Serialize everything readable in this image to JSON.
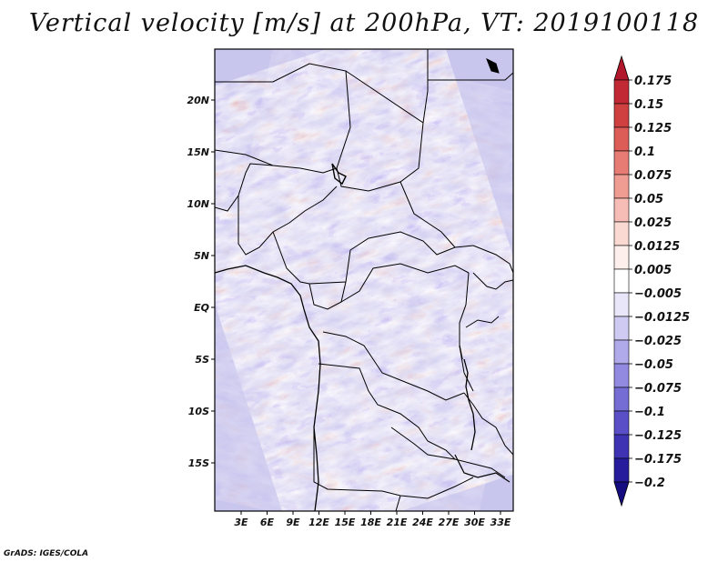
{
  "title": "Vertical velocity [m/s] at 200hPa, VT: 2019100118",
  "credit": "GrADS: IGES/COLA",
  "map": {
    "lon_labels": [
      "3E",
      "6E",
      "9E",
      "12E",
      "15E",
      "18E",
      "21E",
      "24E",
      "27E",
      "30E",
      "33E"
    ],
    "lat_labels": [
      "20N",
      "15N",
      "10N",
      "5N",
      "EQ",
      "5S",
      "10S",
      "15S"
    ]
  },
  "colorbar": {
    "levels": [
      "0.175",
      "0.15",
      "0.125",
      "0.1",
      "0.075",
      "0.05",
      "0.025",
      "0.0125",
      "0.005",
      "-0.005",
      "-0.0125",
      "-0.025",
      "-0.05",
      "-0.075",
      "-0.1",
      "-0.125",
      "-0.175",
      "-0.2"
    ],
    "colors": [
      "#b2182b",
      "#c12a35",
      "#cf4040",
      "#dc5c58",
      "#e67c74",
      "#ef9c93",
      "#f5bdb5",
      "#fad9d3",
      "#fdf0ec",
      "#ffffff",
      "#e8e6f8",
      "#cfcaf2",
      "#b0a9ea",
      "#928ae0",
      "#756cd4",
      "#5a4fc6",
      "#3e33b3",
      "#271c9c",
      "#150c80"
    ]
  },
  "colors": {
    "frame": "#000000",
    "map_background": "#c9c6ee"
  }
}
